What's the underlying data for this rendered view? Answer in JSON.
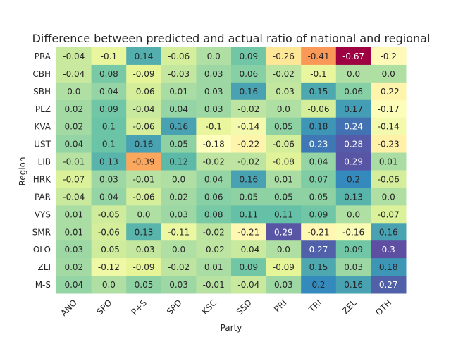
{
  "chart_data": {
    "type": "heatmap",
    "title": "Difference between predicted and actual ratio of national and regional",
    "xlabel": "Party",
    "ylabel": "Region",
    "colormap": "Spectral",
    "value_range": [
      -0.67,
      0.3
    ],
    "colorbar": false,
    "grid": false,
    "x": [
      "ANO",
      "SPO",
      "P+S",
      "SPD",
      "KSC",
      "SSD",
      "PRI",
      "TRI",
      "ZEL",
      "OTH"
    ],
    "y": [
      "PRA",
      "CBH",
      "SBH",
      "PLZ",
      "KVA",
      "UST",
      "LIB",
      "HRK",
      "PAR",
      "VYS",
      "SMR",
      "OLO",
      "ZLI",
      "M-S"
    ],
    "values": [
      [
        -0.04,
        -0.1,
        0.14,
        -0.06,
        0.0,
        0.09,
        -0.26,
        -0.41,
        -0.67,
        -0.2
      ],
      [
        -0.04,
        0.08,
        -0.09,
        -0.03,
        0.03,
        0.06,
        -0.02,
        -0.1,
        0.0,
        0.0
      ],
      [
        0.0,
        0.04,
        -0.06,
        0.01,
        0.03,
        0.16,
        -0.03,
        0.15,
        0.06,
        -0.22
      ],
      [
        0.02,
        0.09,
        -0.04,
        0.04,
        0.03,
        -0.02,
        0.0,
        -0.06,
        0.17,
        -0.17
      ],
      [
        0.02,
        0.1,
        -0.06,
        0.16,
        -0.1,
        -0.14,
        0.05,
        0.18,
        0.24,
        -0.14
      ],
      [
        0.04,
        0.1,
        0.16,
        0.05,
        -0.18,
        -0.22,
        -0.06,
        0.23,
        0.28,
        -0.23
      ],
      [
        -0.01,
        0.13,
        -0.39,
        0.12,
        -0.02,
        -0.02,
        -0.08,
        0.04,
        0.29,
        0.01
      ],
      [
        -0.07,
        0.03,
        -0.01,
        0.0,
        0.04,
        0.16,
        0.01,
        0.07,
        0.2,
        -0.06
      ],
      [
        -0.04,
        0.04,
        -0.06,
        0.02,
        0.06,
        0.05,
        0.05,
        0.05,
        0.13,
        0.0
      ],
      [
        0.01,
        -0.05,
        0.0,
        0.03,
        0.08,
        0.11,
        0.11,
        0.09,
        0.0,
        -0.07
      ],
      [
        0.01,
        -0.06,
        0.13,
        -0.11,
        -0.02,
        -0.21,
        0.29,
        -0.21,
        -0.16,
        0.16
      ],
      [
        0.03,
        -0.05,
        -0.03,
        0.0,
        -0.02,
        -0.04,
        0.0,
        0.27,
        0.09,
        0.3
      ],
      [
        0.02,
        -0.12,
        -0.09,
        -0.02,
        0.01,
        0.09,
        -0.09,
        0.15,
        0.03,
        0.18
      ],
      [
        0.04,
        0.0,
        0.05,
        0.03,
        -0.01,
        -0.04,
        0.03,
        0.2,
        0.16,
        0.27
      ]
    ]
  }
}
